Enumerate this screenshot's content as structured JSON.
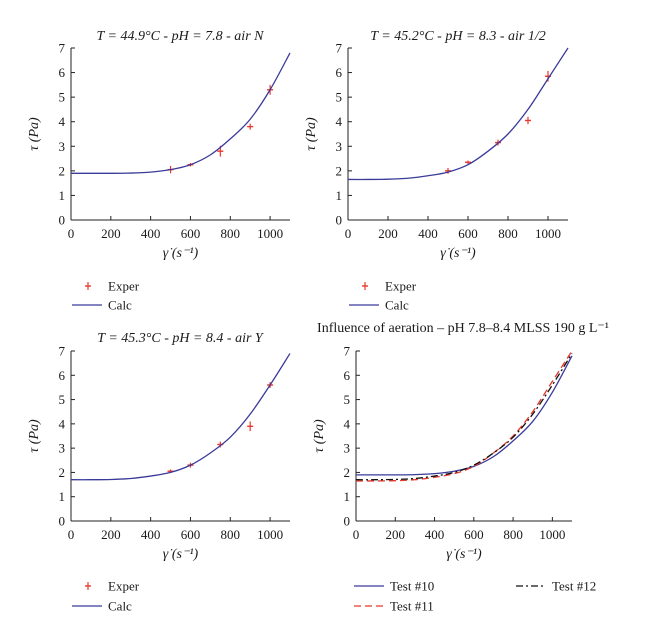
{
  "chart_data": [
    {
      "type": "scatter",
      "title": "T = 44.9°C - pH = 7.8 - air N",
      "xlabel": "γ̇ (s⁻¹)",
      "ylabel": "τ (Pa)",
      "xlim": [
        0,
        1100
      ],
      "ylim": [
        0,
        7
      ],
      "xticks": [
        0,
        200,
        400,
        600,
        800,
        1000
      ],
      "yticks": [
        0,
        1,
        2,
        3,
        4,
        5,
        6,
        7
      ],
      "legend_position": "below",
      "series": [
        {
          "name": "Exper",
          "kind": "points",
          "color": "#e8372b",
          "x": [
            500,
            600,
            750,
            900,
            1000
          ],
          "y": [
            2.05,
            2.25,
            2.8,
            3.8,
            5.3
          ],
          "err": [
            0.15,
            0.07,
            0.22,
            0.12,
            0.2
          ]
        },
        {
          "name": "Calc",
          "kind": "line",
          "color": "#3a3a9a",
          "x": [
            0,
            100,
            200,
            300,
            400,
            500,
            600,
            700,
            800,
            900,
            1000,
            1100
          ],
          "y": [
            1.9,
            1.9,
            1.9,
            1.91,
            1.95,
            2.05,
            2.25,
            2.65,
            3.3,
            4.1,
            5.3,
            6.8
          ]
        }
      ]
    },
    {
      "type": "scatter",
      "title": "T = 45.2°C - pH = 8.3 - air 1/2",
      "xlabel": "γ̇ (s⁻¹)",
      "ylabel": "τ (Pa)",
      "xlim": [
        0,
        1100
      ],
      "ylim": [
        0,
        7
      ],
      "xticks": [
        0,
        200,
        400,
        600,
        800,
        1000
      ],
      "yticks": [
        0,
        1,
        2,
        3,
        4,
        5,
        6,
        7
      ],
      "legend_position": "below",
      "series": [
        {
          "name": "Exper",
          "kind": "points",
          "color": "#e8372b",
          "x": [
            500,
            600,
            750,
            900,
            1000
          ],
          "y": [
            2.0,
            2.35,
            3.15,
            4.05,
            5.85
          ],
          "err": [
            0.12,
            0.07,
            0.12,
            0.15,
            0.22
          ]
        },
        {
          "name": "Calc",
          "kind": "line",
          "color": "#3a3a9a",
          "x": [
            0,
            100,
            200,
            300,
            400,
            500,
            600,
            700,
            800,
            900,
            1000,
            1100
          ],
          "y": [
            1.65,
            1.65,
            1.66,
            1.7,
            1.8,
            1.95,
            2.25,
            2.8,
            3.5,
            4.5,
            5.75,
            7.0
          ]
        }
      ]
    },
    {
      "type": "scatter",
      "title": "T = 45.3°C - pH = 8.4 - air Y",
      "xlabel": "γ̇ (s⁻¹)",
      "ylabel": "τ (Pa)",
      "xlim": [
        0,
        1100
      ],
      "ylim": [
        0,
        7
      ],
      "xticks": [
        0,
        200,
        400,
        600,
        800,
        1000
      ],
      "yticks": [
        0,
        1,
        2,
        3,
        4,
        5,
        6,
        7
      ],
      "legend_position": "below",
      "series": [
        {
          "name": "Exper",
          "kind": "points",
          "color": "#e8372b",
          "x": [
            500,
            600,
            750,
            900,
            1000
          ],
          "y": [
            2.05,
            2.3,
            3.15,
            3.9,
            5.6
          ],
          "err": [
            0.07,
            0.1,
            0.12,
            0.2,
            0.12
          ]
        },
        {
          "name": "Calc",
          "kind": "line",
          "color": "#3a3a9a",
          "x": [
            0,
            100,
            200,
            300,
            400,
            500,
            600,
            700,
            800,
            900,
            1000,
            1100
          ],
          "y": [
            1.7,
            1.7,
            1.71,
            1.75,
            1.85,
            2.0,
            2.3,
            2.8,
            3.45,
            4.4,
            5.6,
            6.9
          ]
        }
      ]
    },
    {
      "type": "line",
      "title": "Influence of aeration – pH 7.8–8.4 MLSS 190 g L⁻¹",
      "xlabel": "γ̇ (s⁻¹)",
      "ylabel": "τ (Pa)",
      "xlim": [
        0,
        1100
      ],
      "ylim": [
        0,
        7
      ],
      "xticks": [
        0,
        200,
        400,
        600,
        800,
        1000
      ],
      "yticks": [
        0,
        1,
        2,
        3,
        4,
        5,
        6,
        7
      ],
      "legend_position": "below",
      "series": [
        {
          "name": "Test #10",
          "kind": "line",
          "dash": "solid",
          "color": "#3a3a9a",
          "x": [
            0,
            100,
            200,
            300,
            400,
            500,
            600,
            700,
            800,
            900,
            1000,
            1100
          ],
          "y": [
            1.9,
            1.9,
            1.9,
            1.91,
            1.95,
            2.05,
            2.25,
            2.65,
            3.3,
            4.1,
            5.3,
            6.8
          ]
        },
        {
          "name": "Test #11",
          "kind": "line",
          "dash": "dashed",
          "color": "#e8372b",
          "x": [
            0,
            100,
            200,
            300,
            400,
            500,
            600,
            700,
            800,
            900,
            1000,
            1100
          ],
          "y": [
            1.65,
            1.65,
            1.66,
            1.7,
            1.8,
            1.95,
            2.25,
            2.8,
            3.5,
            4.5,
            5.75,
            7.0
          ]
        },
        {
          "name": "Test #12",
          "kind": "line",
          "dash": "dashdot",
          "color": "#111111",
          "x": [
            0,
            100,
            200,
            300,
            400,
            500,
            600,
            700,
            800,
            900,
            1000,
            1100
          ],
          "y": [
            1.7,
            1.7,
            1.71,
            1.75,
            1.85,
            2.0,
            2.3,
            2.8,
            3.45,
            4.4,
            5.6,
            6.9
          ]
        }
      ]
    }
  ]
}
